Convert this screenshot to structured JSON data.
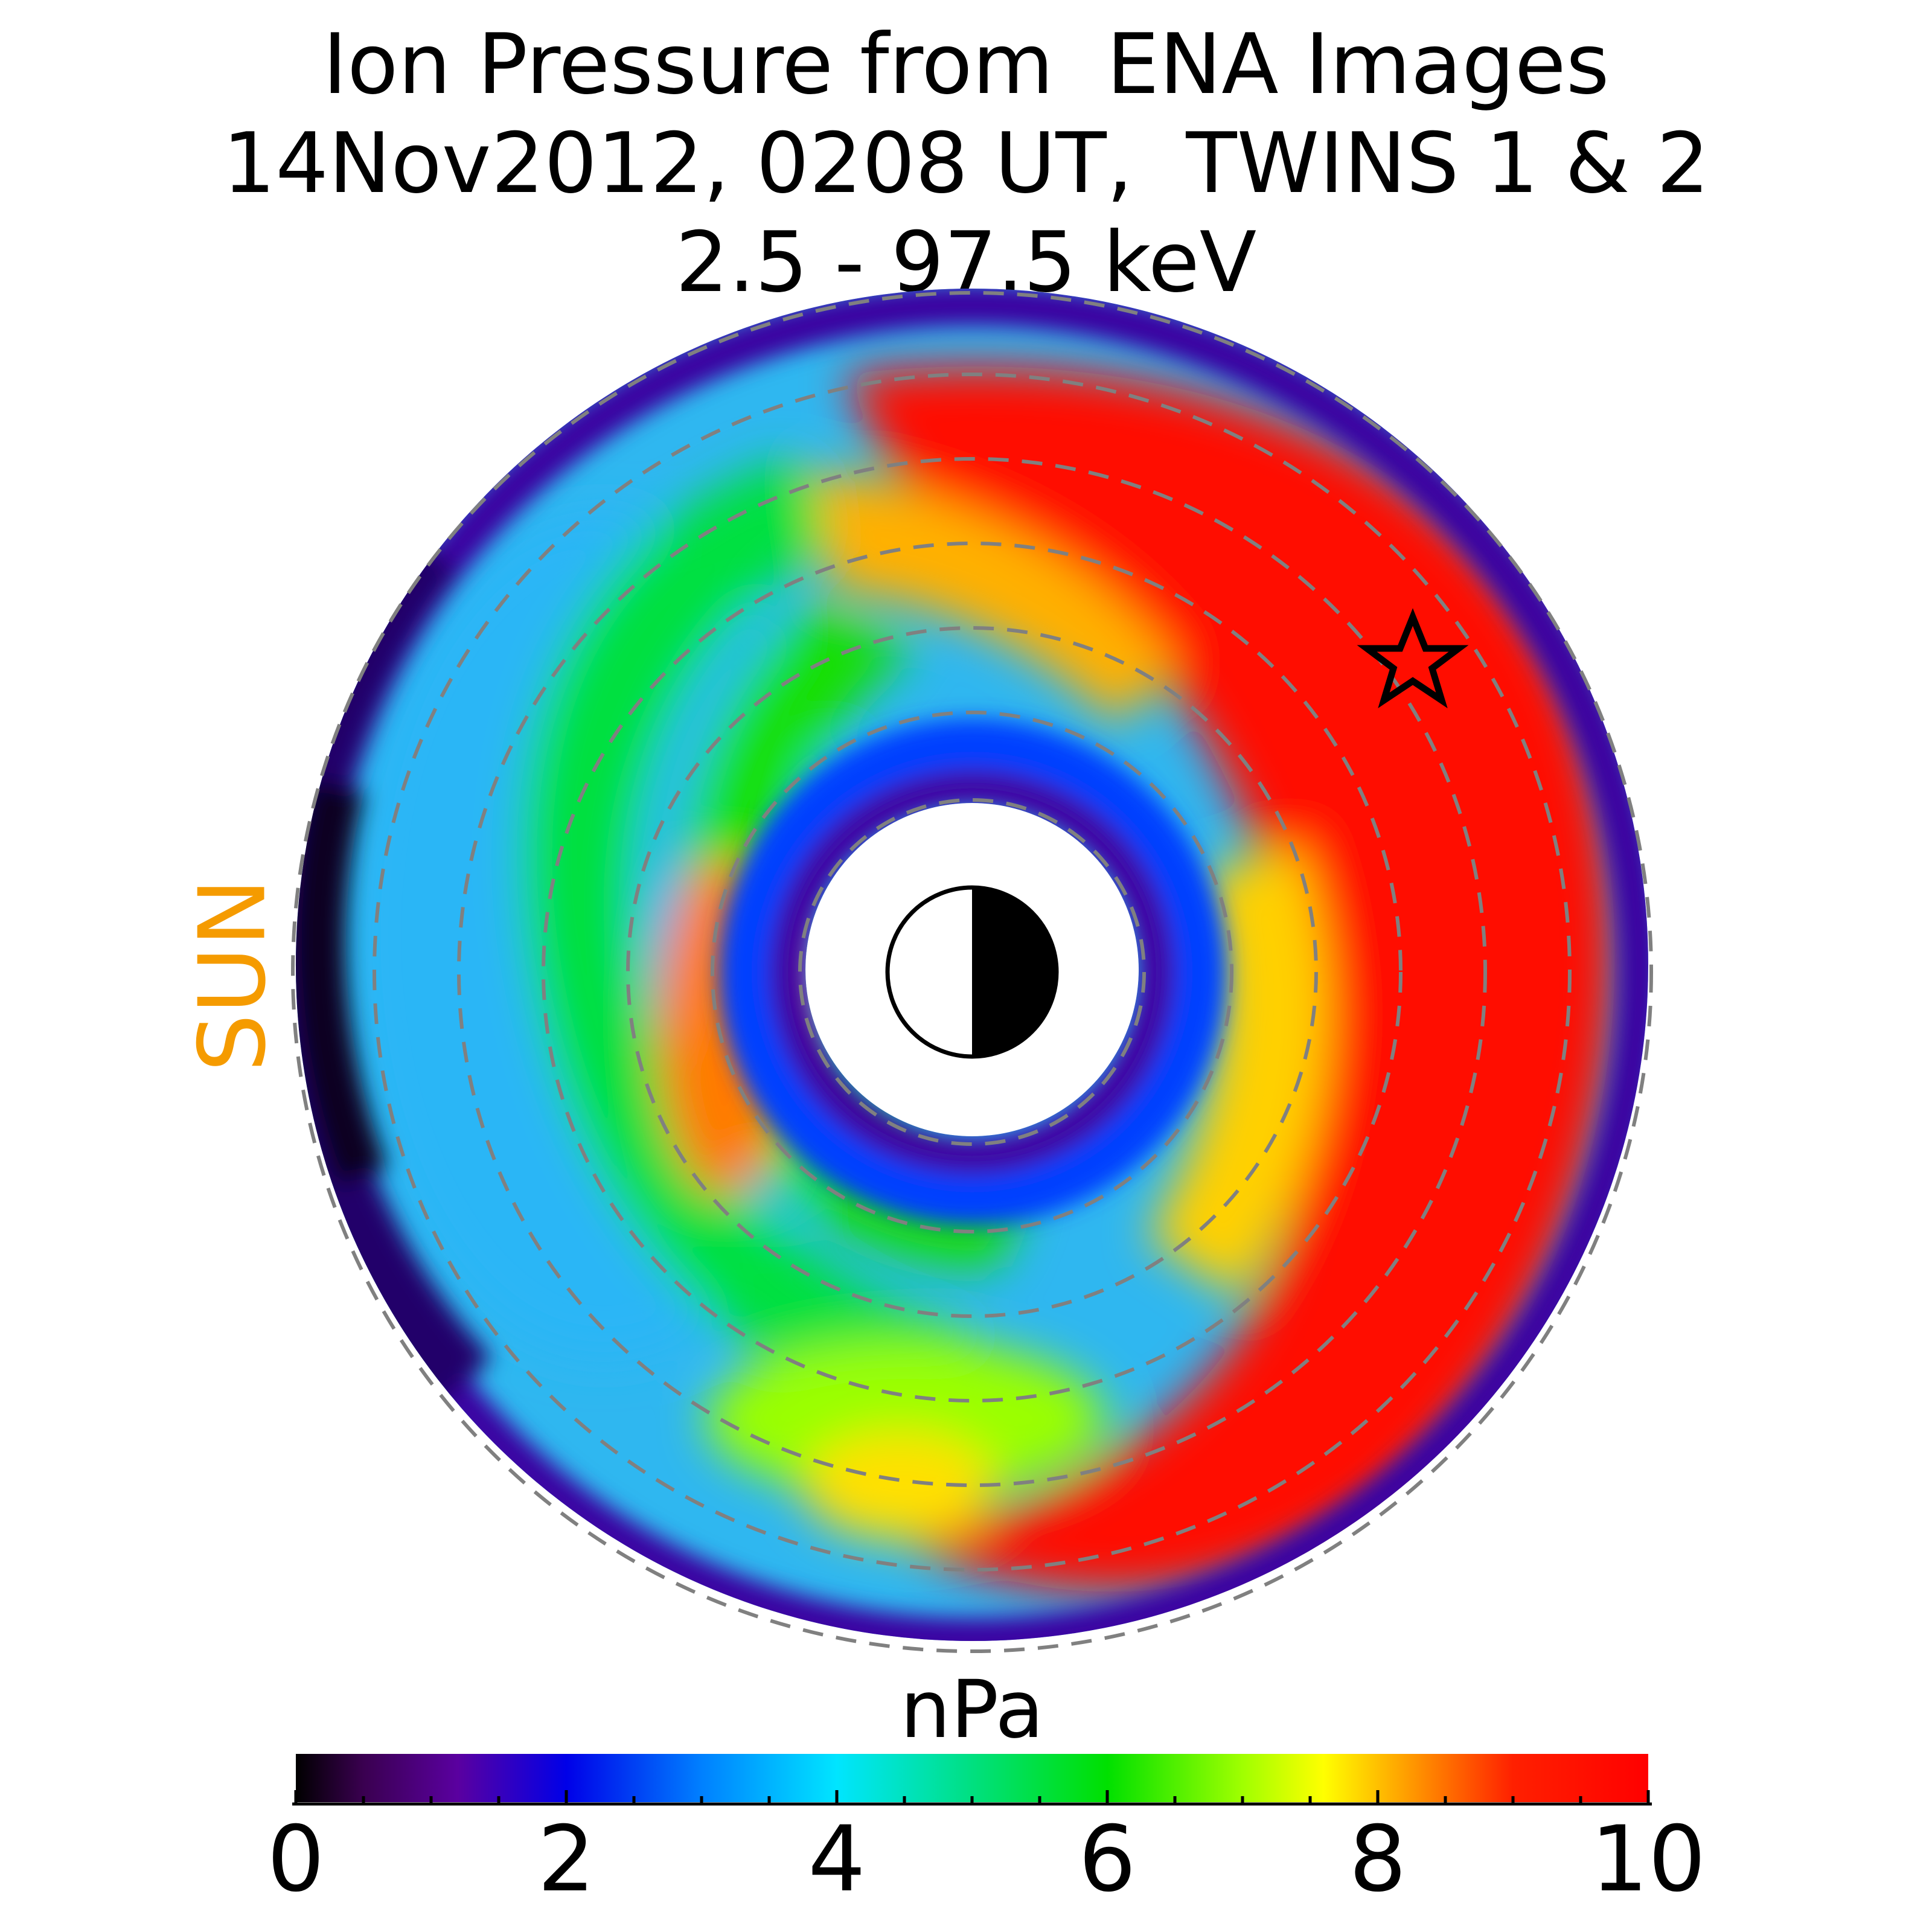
{
  "chart_data": {
    "type": "heatmap",
    "projection": "polar, equatorial plane, Sun to the left",
    "title_lines": [
      "Ion Pressure from  ENA Images",
      "14Nov2012, 0208 UT,  TWINS 1 & 2",
      "2.5 - 97.5 keV"
    ],
    "sun_label": "SUN",
    "colorbar": {
      "label": "nPa",
      "range": [
        0,
        10
      ],
      "tick_labels": [
        "0",
        "2",
        "4",
        "6",
        "8",
        "10"
      ],
      "colormap": "nipy_spectral-like (black-purple-blue-cyan-green-yellow-red)"
    },
    "grid": "dashed gray concentric circles",
    "earth_symbol": "half-shaded circle, night side (right) black",
    "marker": "star, pre-midnight sector",
    "values_description": "Pressure exceeds 10 nPa over a wide band on the night side (right half); moderate 4-7 nPa on the dayside; low values at the inner and outer edges"
  },
  "colors": {
    "sun_label": "#f59b00",
    "grid": "#808080",
    "background": "#ffffff"
  }
}
